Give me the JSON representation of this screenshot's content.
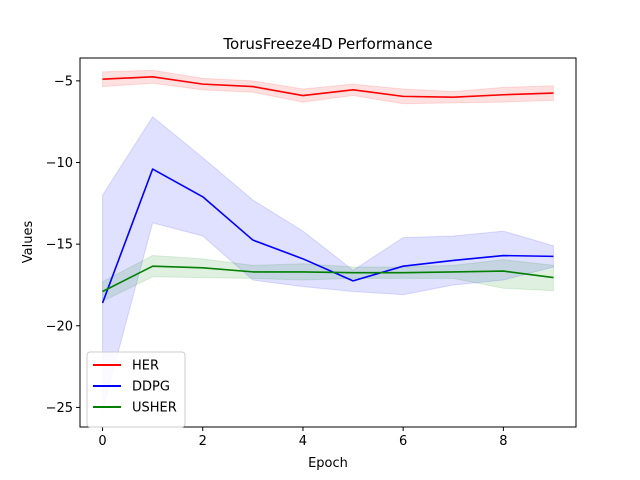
{
  "chart_data": {
    "type": "line",
    "title": "TorusFreeze4D Performance",
    "xlabel": "Epoch",
    "ylabel": "Values",
    "x": [
      0,
      1,
      2,
      3,
      4,
      5,
      6,
      7,
      8,
      9
    ],
    "xlim": [
      -0.45,
      9.45
    ],
    "ylim": [
      -26.2,
      -3.6
    ],
    "xticks": [
      0,
      2,
      4,
      6,
      8
    ],
    "yticks": [
      -5,
      -10,
      -15,
      -20,
      -25
    ],
    "grid": false,
    "legend_position": "lower-left",
    "series": [
      {
        "name": "HER",
        "color": "#ff0000",
        "values": [
          -4.9,
          -4.75,
          -5.2,
          -5.35,
          -5.9,
          -5.55,
          -5.95,
          -6.0,
          -5.85,
          -5.75
        ],
        "upper": [
          -4.45,
          -4.35,
          -4.85,
          -5.0,
          -5.5,
          -5.2,
          -5.5,
          -5.65,
          -5.4,
          -5.3
        ],
        "lower": [
          -5.35,
          -5.15,
          -5.55,
          -5.7,
          -6.3,
          -5.9,
          -6.4,
          -6.35,
          -6.3,
          -6.2
        ]
      },
      {
        "name": "DDPG",
        "color": "#0000ff",
        "values": [
          -18.6,
          -10.4,
          -12.1,
          -14.75,
          -15.9,
          -17.25,
          -16.35,
          -16.0,
          -15.7,
          -15.75
        ],
        "upper": [
          -12.0,
          -7.2,
          -9.7,
          -12.3,
          -14.2,
          -16.6,
          -14.6,
          -14.5,
          -14.2,
          -15.1
        ],
        "lower": [
          -25.2,
          -13.7,
          -14.5,
          -17.2,
          -17.6,
          -17.9,
          -18.1,
          -17.5,
          -17.2,
          -16.4
        ]
      },
      {
        "name": "USHER",
        "color": "#008000",
        "values": [
          -17.9,
          -16.35,
          -16.45,
          -16.7,
          -16.7,
          -16.75,
          -16.75,
          -16.7,
          -16.65,
          -17.05
        ],
        "upper": [
          -17.3,
          -15.7,
          -15.9,
          -16.3,
          -16.2,
          -16.4,
          -16.4,
          -16.3,
          -15.95,
          -16.3
        ],
        "lower": [
          -18.5,
          -17.0,
          -17.05,
          -17.1,
          -17.2,
          -17.1,
          -17.1,
          -17.1,
          -17.7,
          -17.85
        ]
      }
    ]
  }
}
